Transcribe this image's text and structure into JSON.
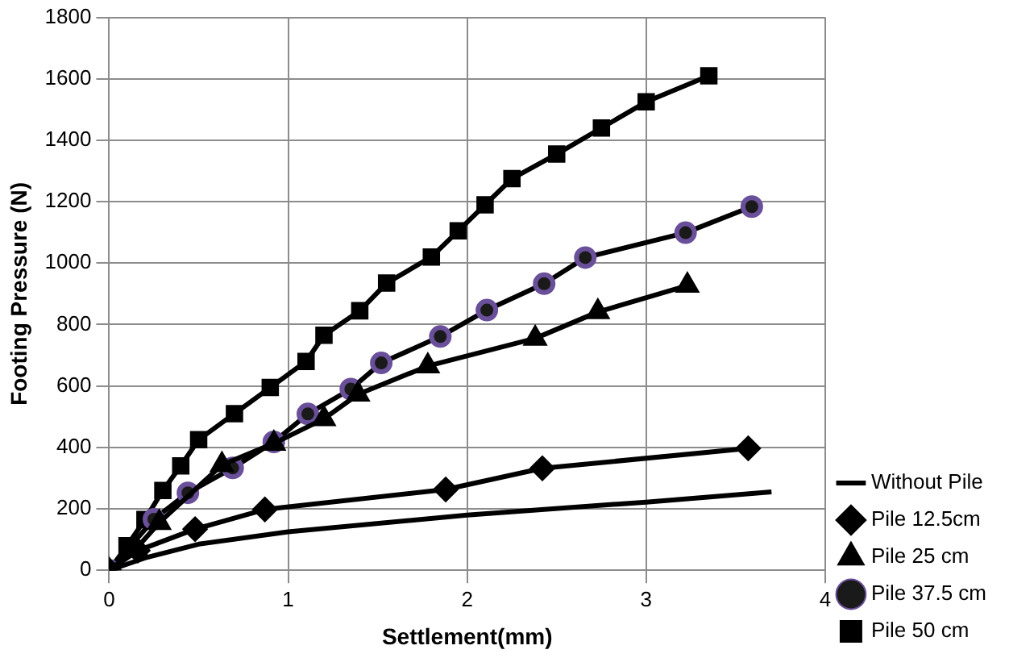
{
  "chart_data": {
    "type": "line",
    "xlabel": "Settlement(mm)",
    "ylabel": "Footing Pressure (N)",
    "xlim": [
      0,
      4
    ],
    "xticks": [
      0,
      1,
      2,
      3,
      4
    ],
    "ylim": [
      0,
      1800
    ],
    "yticks": [
      0,
      200,
      400,
      600,
      800,
      1000,
      1200,
      1400,
      1600,
      1800
    ],
    "grid": true,
    "legend": "right",
    "series": [
      {
        "name": "Without Pile",
        "color": "#000000",
        "marker": "none",
        "x": [
          0,
          0.2,
          0.5,
          1,
          2,
          3,
          3.7
        ],
        "values": [
          0,
          40,
          85,
          125,
          180,
          222,
          255
        ]
      },
      {
        "name": "Pile 12.5cm",
        "color": "#000000",
        "marker": "diamond",
        "x": [
          0,
          0.16,
          0.48,
          0.87,
          1.88,
          2.42,
          3.57
        ],
        "values": [
          0,
          64,
          134,
          198,
          263,
          332,
          397
        ]
      },
      {
        "name": "Pile 25 cm",
        "color": "#000000",
        "marker": "triangle",
        "x": [
          0,
          0.15,
          0.28,
          0.63,
          0.92,
          1.2,
          1.39,
          1.78,
          2.38,
          2.73,
          3.23
        ],
        "values": [
          0,
          70,
          155,
          343,
          413,
          493,
          573,
          665,
          755,
          841,
          927
        ]
      },
      {
        "name": "Pile 37.5 cm",
        "color": "#000000",
        "marker": "circle",
        "x": [
          0,
          0.25,
          0.44,
          0.69,
          0.92,
          1.11,
          1.35,
          1.52,
          1.85,
          2.11,
          2.43,
          2.66,
          3.22,
          3.59
        ],
        "values": [
          0,
          166,
          252,
          333,
          418,
          509,
          590,
          675,
          761,
          847,
          933,
          1018,
          1099,
          1184
        ]
      },
      {
        "name": "Pile 50 cm",
        "color": "#000000",
        "marker": "square",
        "x": [
          0,
          0.1,
          0.2,
          0.3,
          0.4,
          0.5,
          0.7,
          0.9,
          1.1,
          1.2,
          1.4,
          1.55,
          1.8,
          1.95,
          2.1,
          2.25,
          2.5,
          2.75,
          3.0,
          3.35
        ],
        "values": [
          0,
          80,
          165,
          260,
          340,
          425,
          510,
          595,
          680,
          765,
          845,
          935,
          1020,
          1105,
          1190,
          1275,
          1355,
          1440,
          1525,
          1610
        ]
      }
    ]
  }
}
